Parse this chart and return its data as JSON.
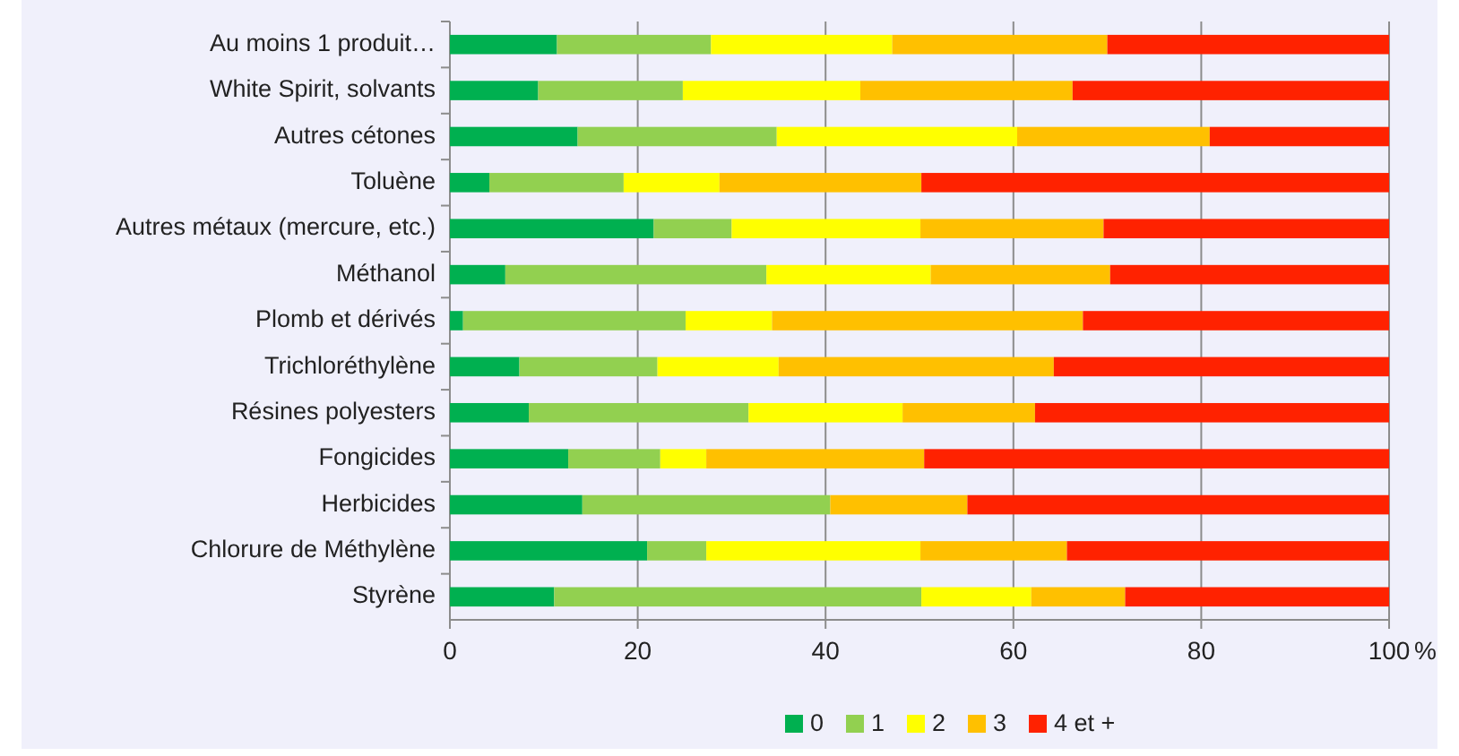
{
  "chart_data": {
    "type": "bar",
    "orientation": "horizontal",
    "stacked": true,
    "xlabel": "%",
    "categories": [
      "Au moins 1 produit…",
      "White Spirit, solvants",
      "Autres cétones",
      "Toluène",
      "Autres métaux (mercure, etc.)",
      "Méthanol",
      "Plomb et dérivés",
      "Trichloréthylène",
      "Résines polyesters",
      "Fongicides",
      "Herbicides",
      "Chlorure de Méthylène",
      "Styrène"
    ],
    "series": [
      {
        "name": "0",
        "color": "#00b050",
        "values": [
          11.4,
          9.4,
          13.6,
          4.2,
          21.7,
          5.9,
          1.4,
          7.4,
          8.4,
          12.6,
          14.1,
          21.0,
          11.1
        ]
      },
      {
        "name": "1",
        "color": "#92d050",
        "values": [
          16.4,
          15.4,
          21.2,
          14.3,
          8.3,
          27.8,
          23.7,
          14.7,
          23.4,
          9.8,
          26.4,
          6.3,
          39.1
        ]
      },
      {
        "name": "2",
        "color": "#ffff00",
        "values": [
          19.3,
          18.9,
          25.6,
          10.2,
          20.1,
          17.5,
          9.2,
          12.9,
          16.4,
          4.9,
          0,
          22.8,
          11.7
        ]
      },
      {
        "name": "3",
        "color": "#ffc000",
        "values": [
          22.9,
          22.6,
          20.5,
          21.5,
          19.5,
          19.1,
          33.1,
          29.3,
          14.1,
          23.2,
          14.6,
          15.6,
          10.0
        ]
      },
      {
        "name": "4 et +",
        "color": "#ff2200",
        "values": [
          30.0,
          33.7,
          19.1,
          49.8,
          30.4,
          29.7,
          32.6,
          35.7,
          37.7,
          49.5,
          44.9,
          34.3,
          28.1
        ]
      }
    ],
    "xlim": [
      0,
      100
    ],
    "xticks": [
      0,
      20,
      40,
      60,
      80,
      100
    ],
    "grid": "x",
    "legend": "bottom"
  }
}
